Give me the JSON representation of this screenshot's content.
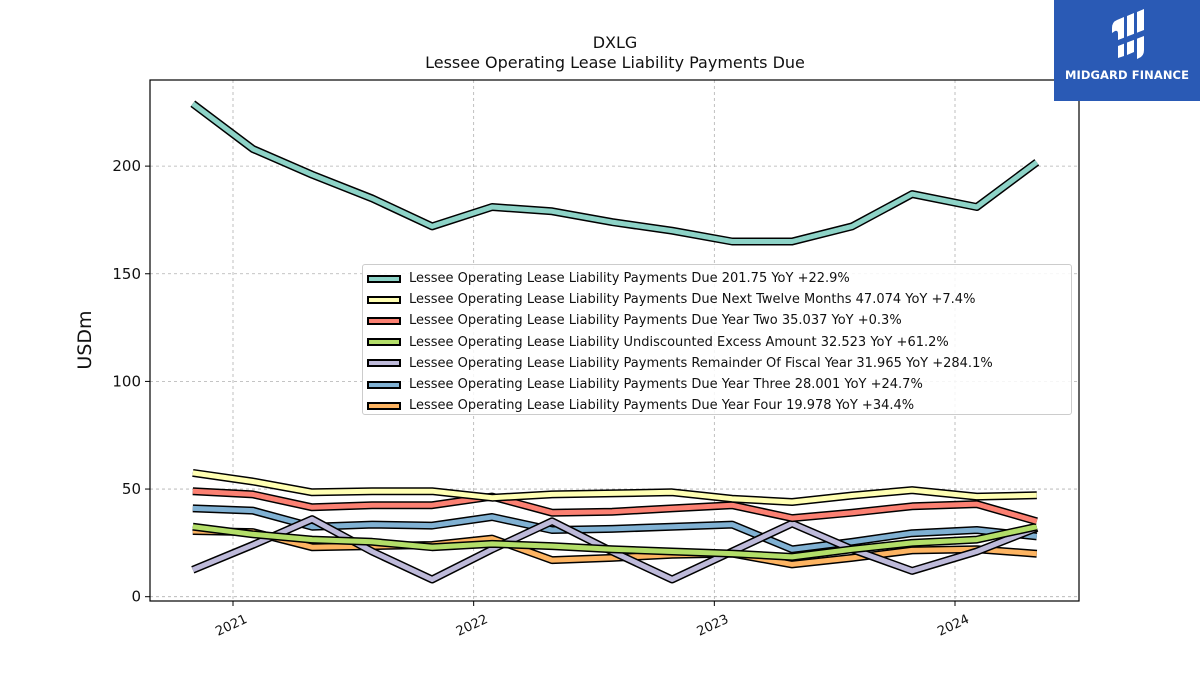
{
  "chart_data": {
    "type": "line",
    "title": "DXLG",
    "subtitle": "Lessee Operating Lease Liability Payments Due",
    "ylabel": "USDm",
    "xlabel": "",
    "ylim": [
      -2,
      240
    ],
    "y_ticks": [
      0,
      50,
      100,
      150,
      200
    ],
    "x_ticks": [
      "2021",
      "2022",
      "2023",
      "2024"
    ],
    "grid": true,
    "legend_position": "center-right",
    "x": [
      "2020-11-01",
      "2021-01-31",
      "2021-05-01",
      "2021-07-31",
      "2021-10-30",
      "2022-01-29",
      "2022-04-30",
      "2022-07-30",
      "2022-10-29",
      "2023-01-28",
      "2023-04-29",
      "2023-07-29",
      "2023-10-28",
      "2024-02-03",
      "2024-05-04"
    ],
    "series": [
      {
        "name": "Lessee Operating Lease Liability Payments Due",
        "legend_label": "Lessee Operating Lease Liability Payments Due  201.75 YoY +22.9%",
        "color": "#8dd3c7",
        "values": [
          229,
          208,
          196,
          185,
          172,
          181,
          179,
          174,
          170,
          165,
          165,
          172,
          187,
          181,
          201.75
        ]
      },
      {
        "name": "Lessee Operating Lease Liability Payments Due Next Twelve Months",
        "legend_label": "Lessee Operating Lease Liability Payments Due Next Twelve Months  47.074 YoY +7.4%",
        "color": "#ffffb3",
        "values": [
          57.5,
          53.5,
          48.5,
          49,
          49,
          46,
          47.5,
          48,
          48.5,
          45.5,
          44,
          47,
          49.5,
          46.5,
          47.074
        ]
      },
      {
        "name": "Lessee Operating Lease Liability Payments Due Year Two",
        "legend_label": "Lessee Operating Lease Liability Payments Due Year Two  35.037 YoY +0.3%",
        "color": "#fb8072",
        "values": [
          49,
          47.5,
          41.5,
          42.5,
          42.5,
          46.5,
          39,
          39.5,
          41,
          42.5,
          36.5,
          39,
          42,
          43,
          35.037
        ]
      },
      {
        "name": "Lessee Operating Lease Liability Undiscounted Excess Amount",
        "legend_label": "Lessee Operating Lease Liability Undiscounted Excess Amount  32.523 YoY +61.2%",
        "color": "#b3de69",
        "values": [
          32.5,
          29,
          26.5,
          25.5,
          23,
          24.5,
          23.5,
          22,
          21,
          20,
          18.5,
          22,
          25,
          26.5,
          32.523
        ]
      },
      {
        "name": "Lessee Operating Lease Liability Payments Remainder Of Fiscal Year",
        "legend_label": "Lessee Operating Lease Liability Payments Remainder Of Fiscal Year  31.965 YoY +284.1%",
        "color": "#bebada",
        "values": [
          12.5,
          24,
          36,
          21,
          8,
          22,
          35,
          21,
          8,
          21,
          34,
          22,
          12,
          21,
          31.965
        ]
      },
      {
        "name": "Lessee Operating Lease Liability Payments Due Year Three",
        "legend_label": "Lessee Operating Lease Liability Payments Due Year Three  28.001 YoY +24.7%",
        "color": "#80b1d3",
        "values": [
          41,
          40,
          32.5,
          33.5,
          33,
          37,
          31,
          31.5,
          32.5,
          33.5,
          22,
          25.5,
          29.5,
          31,
          28.001
        ]
      },
      {
        "name": "Lessee Operating Lease Liability Payments Due Year Four",
        "legend_label": "Lessee Operating Lease Liability Payments Due Year Four  19.978 YoY +34.4%",
        "color": "#fdb462",
        "values": [
          30.5,
          30,
          23,
          23.5,
          24,
          27,
          17,
          18,
          19.5,
          20,
          15,
          18,
          21.5,
          22,
          19.978
        ]
      }
    ]
  },
  "logo": {
    "text": "MIDGARD FINANCE",
    "bg_color": "#2a5ab5"
  }
}
